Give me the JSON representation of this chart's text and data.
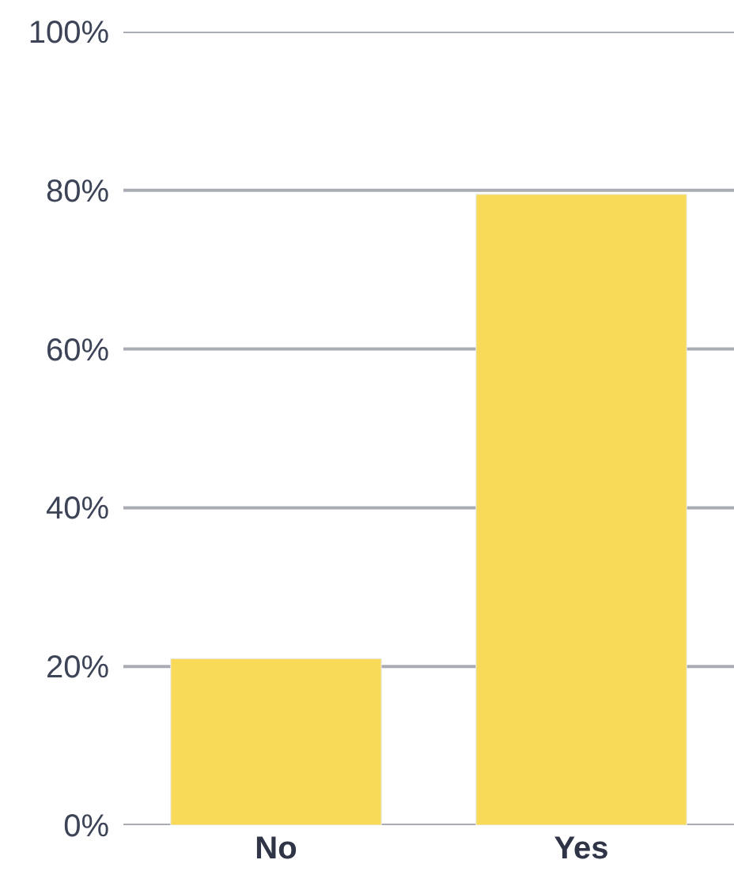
{
  "chart_data": {
    "type": "bar",
    "categories": [
      "No",
      "Yes"
    ],
    "values": [
      21,
      79.5
    ],
    "color": "#f8da58",
    "ylim": [
      0,
      100
    ],
    "yticks": [
      {
        "value": 0,
        "label": "0%"
      },
      {
        "value": 20,
        "label": "20%"
      },
      {
        "value": 40,
        "label": "40%"
      },
      {
        "value": 60,
        "label": "60%"
      },
      {
        "value": 80,
        "label": "80%"
      },
      {
        "value": 100,
        "label": "100%"
      }
    ],
    "grid": "y"
  }
}
